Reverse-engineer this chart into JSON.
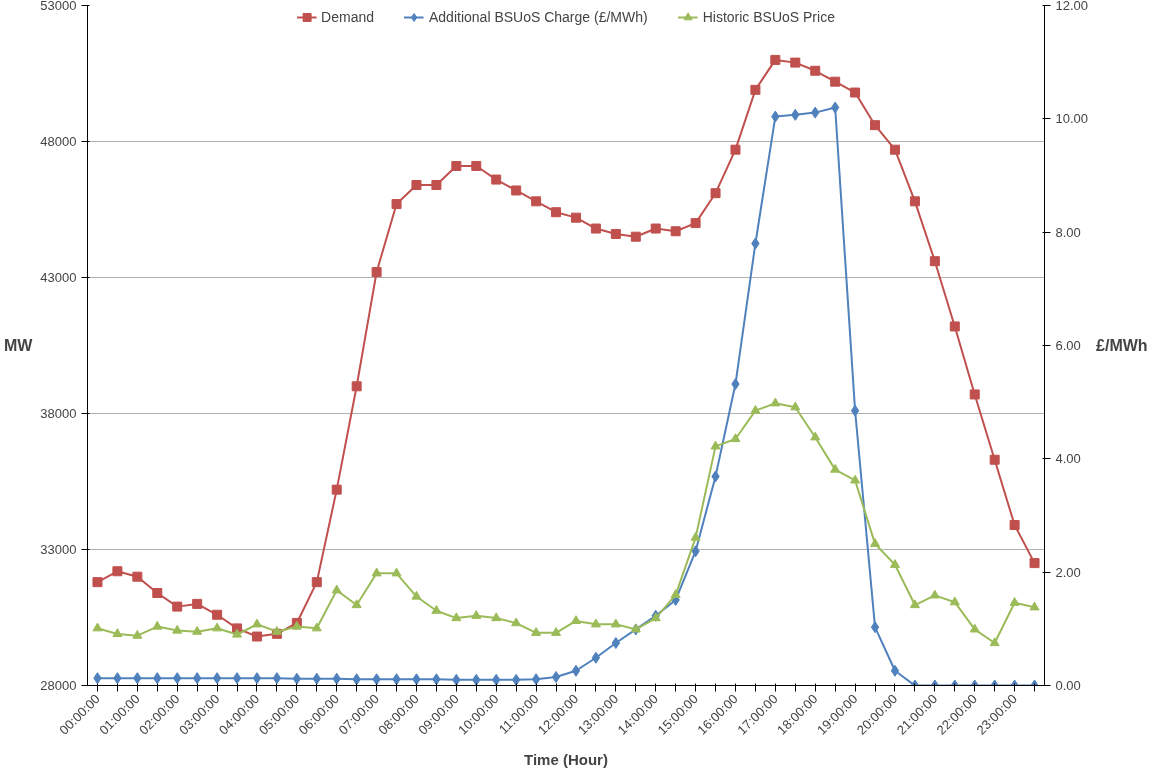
{
  "chart_data": {
    "type": "line",
    "xlabel": "Time (Hour)",
    "ylabel": "MW",
    "y2label": "£/MWh",
    "categories": [
      "00:00:00",
      null,
      "01:00:00",
      null,
      "02:00:00",
      null,
      "03:00:00",
      null,
      "04:00:00",
      null,
      "05:00:00",
      null,
      "06:00:00",
      null,
      "07:00:00",
      null,
      "08:00:00",
      null,
      "09:00:00",
      null,
      "10:00:00",
      null,
      "11:00:00",
      null,
      "12:00:00",
      null,
      "13:00:00",
      null,
      "14:00:00",
      null,
      "15:00:00",
      null,
      "16:00:00",
      null,
      "17:00:00",
      null,
      "18:00:00",
      null,
      "19:00:00",
      null,
      "20:00:00",
      null,
      "21:00:00",
      null,
      "22:00:00",
      null,
      "23:00:00",
      null
    ],
    "ylim": [
      28000,
      53000
    ],
    "yticks": [
      28000,
      33000,
      38000,
      43000,
      48000,
      53000
    ],
    "y2lim": [
      0,
      12
    ],
    "y2ticks": [
      {
        "value": 0,
        "label": "0.00"
      },
      {
        "value": 2,
        "label": "2.00"
      },
      {
        "value": 4,
        "label": "4.00"
      },
      {
        "value": 6,
        "label": "6.00"
      },
      {
        "value": 8,
        "label": "8.00"
      },
      {
        "value": 10,
        "label": "10.00"
      },
      {
        "value": 12,
        "label": "12.00"
      }
    ],
    "grid": "y",
    "legend": "top",
    "line_style": "solid",
    "series": [
      {
        "name": "Demand",
        "color": "#c0504d",
        "marker": "square",
        "values": [
          31800,
          32200,
          32000,
          31400,
          30900,
          31000,
          30600,
          30100,
          29800,
          29900,
          30300,
          31800,
          35200,
          39000,
          43200,
          45700,
          46400,
          46400,
          47100,
          47100,
          46600,
          46200,
          45800,
          45400,
          45200,
          44800,
          44600,
          44500,
          44800,
          44700,
          45000,
          46100,
          47700,
          49900,
          51000,
          50900,
          50600,
          50200,
          49800,
          48600,
          47700,
          45800,
          43600,
          41200,
          38700,
          36300,
          33900,
          32500
        ]
      },
      {
        "name": "Additional BSUoS Charge (£/MWh)",
        "color": "#4f81bd",
        "marker": "diamond",
        "axis": "y2",
        "values": [
          0.13,
          0.13,
          0.13,
          0.13,
          0.13,
          0.13,
          0.13,
          0.13,
          0.13,
          0.13,
          0.12,
          0.12,
          0.12,
          0.11,
          0.11,
          0.11,
          0.11,
          0.11,
          0.1,
          0.1,
          0.1,
          0.1,
          0.11,
          0.15,
          0.26,
          0.49,
          0.75,
          0.99,
          1.23,
          1.51,
          2.37,
          3.69,
          5.32,
          7.8,
          10.04,
          10.07,
          10.11,
          10.2,
          4.85,
          1.03,
          0.26,
          0,
          0,
          0,
          0,
          0,
          0,
          0
        ]
      },
      {
        "name": "Historic BSUoS Price",
        "color": "#9bbb59",
        "marker": "triangle",
        "axis": "y2",
        "values": [
          1.01,
          0.91,
          0.88,
          1.04,
          0.97,
          0.95,
          1.01,
          0.9,
          1.08,
          0.95,
          1.04,
          1.01,
          1.68,
          1.42,
          1.98,
          1.98,
          1.57,
          1.32,
          1.19,
          1.23,
          1.19,
          1.1,
          0.93,
          0.93,
          1.14,
          1.08,
          1.08,
          0.99,
          1.19,
          1.6,
          2.61,
          4.22,
          4.35,
          4.85,
          4.98,
          4.91,
          4.38,
          3.81,
          3.62,
          2.5,
          2.13,
          1.42,
          1.59,
          1.47,
          0.99,
          0.75,
          1.46,
          1.38
        ]
      }
    ]
  }
}
